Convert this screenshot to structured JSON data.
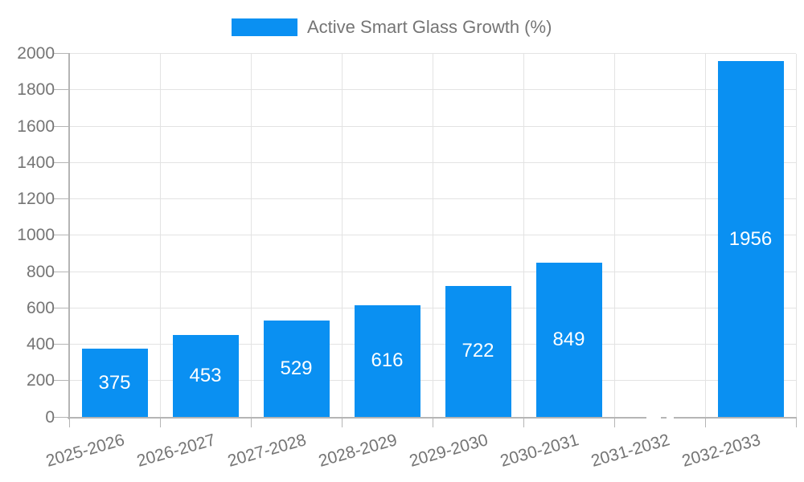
{
  "chart_data": {
    "type": "bar",
    "title": "",
    "legend": {
      "position": "top",
      "label": "Active Smart Glass Growth (%)"
    },
    "categories": [
      "2025-2026",
      "2026-2027",
      "2027-2028",
      "2028-2029",
      "2029-2030",
      "2030-2031",
      "2031-2032",
      "2032-2033"
    ],
    "series": [
      {
        "name": "Active Smart Glass Growth (%)",
        "values": [
          375,
          453,
          529,
          616,
          722,
          849,
          0,
          1956
        ]
      }
    ],
    "bar_value_labels": [
      "375",
      "453",
      "529",
      "616",
      "722",
      "849",
      "",
      "1956"
    ],
    "xlabel": "",
    "ylabel": "",
    "ylim": [
      0,
      2000
    ],
    "yticks": [
      0,
      200,
      400,
      600,
      800,
      1000,
      1200,
      1400,
      1600,
      1800,
      2000
    ],
    "grid": true,
    "colors": {
      "bar": "#0a90f2",
      "bar_label_text": "#ffffff",
      "tick_text": "#757575",
      "legend_text": "#757575",
      "grid": "#e3e3e3",
      "axis": "#b5b5b5",
      "background": "#ffffff"
    }
  }
}
